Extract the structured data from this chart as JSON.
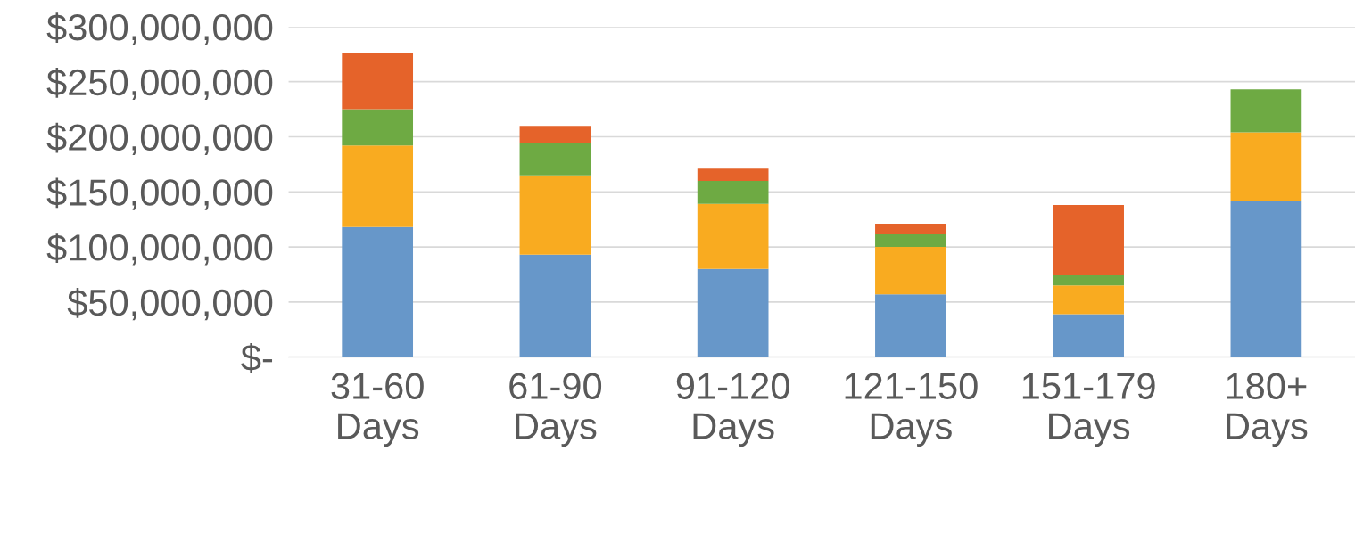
{
  "chart_data": {
    "type": "bar",
    "stacked": true,
    "grid": "y",
    "categories": [
      "31-60\nDays",
      "61-90\nDays",
      "91-120\nDays",
      "121-150\nDays",
      "151-179\nDays",
      "180+\nDays"
    ],
    "ylim": [
      0,
      300000000
    ],
    "yticks": [
      {
        "value": 0,
        "label": "$-"
      },
      {
        "value": 50000000,
        "label": "$50,000,000"
      },
      {
        "value": 100000000,
        "label": "$100,000,000"
      },
      {
        "value": 150000000,
        "label": "$150,000,000"
      },
      {
        "value": 200000000,
        "label": "$200,000,000"
      },
      {
        "value": 250000000,
        "label": "$250,000,000"
      },
      {
        "value": 300000000,
        "label": "$300,000,000"
      }
    ],
    "series": [
      {
        "color": "#6797c9",
        "values": [
          118000000,
          93000000,
          80000000,
          57000000,
          39000000,
          142000000
        ]
      },
      {
        "color": "#f9ab20",
        "values": [
          74000000,
          72000000,
          59000000,
          43000000,
          26000000,
          62000000
        ]
      },
      {
        "color": "#6eaa43",
        "values": [
          33000000,
          29000000,
          21000000,
          12000000,
          10000000,
          39000000
        ]
      },
      {
        "color": "#e5632a",
        "values": [
          51000000,
          16000000,
          11000000,
          9000000,
          63000000,
          0
        ]
      }
    ]
  }
}
